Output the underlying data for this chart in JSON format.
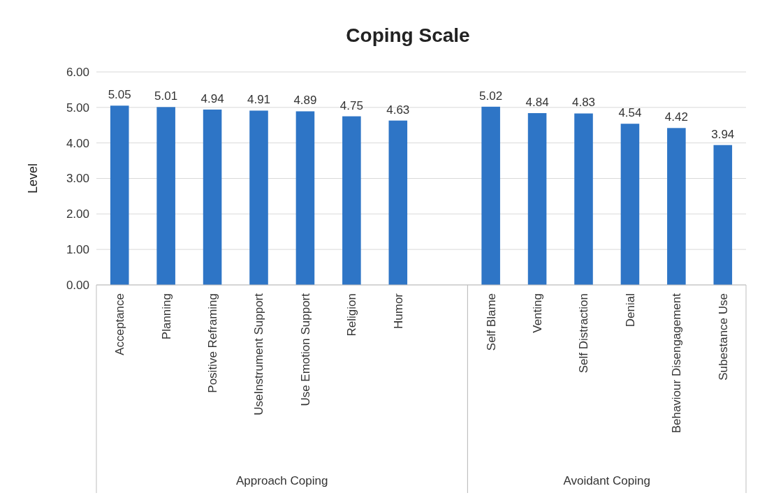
{
  "chart_data": {
    "type": "bar",
    "title": "Coping Scale",
    "ylabel": "Level",
    "categories": [
      "Acceptance",
      "Planning",
      "Positive Reframing",
      "UseInstrument Support",
      "Use Emotion Support",
      "Religion",
      "Humor",
      null,
      "Self Blame",
      "Venting",
      "Self Distraction",
      "Denial",
      "Behaviour Disengagement",
      "Subestance Use"
    ],
    "values": [
      5.05,
      5.01,
      4.94,
      4.91,
      4.89,
      4.75,
      4.63,
      null,
      5.02,
      4.84,
      4.83,
      4.54,
      4.42,
      3.94
    ],
    "color": "#2e75c6",
    "ylim": [
      0,
      6
    ],
    "yticks": [
      {
        "value": 0,
        "label": "0.00"
      },
      {
        "value": 1,
        "label": "1.00"
      },
      {
        "value": 2,
        "label": "2.00"
      },
      {
        "value": 3,
        "label": "3.00"
      },
      {
        "value": 4,
        "label": "4.00"
      },
      {
        "value": 5,
        "label": "5.00"
      },
      {
        "value": 6,
        "label": "6.00"
      }
    ],
    "grid": "y",
    "data_labels": true,
    "annotations": [
      "Approach Coping",
      "Avoidant Coping"
    ]
  }
}
